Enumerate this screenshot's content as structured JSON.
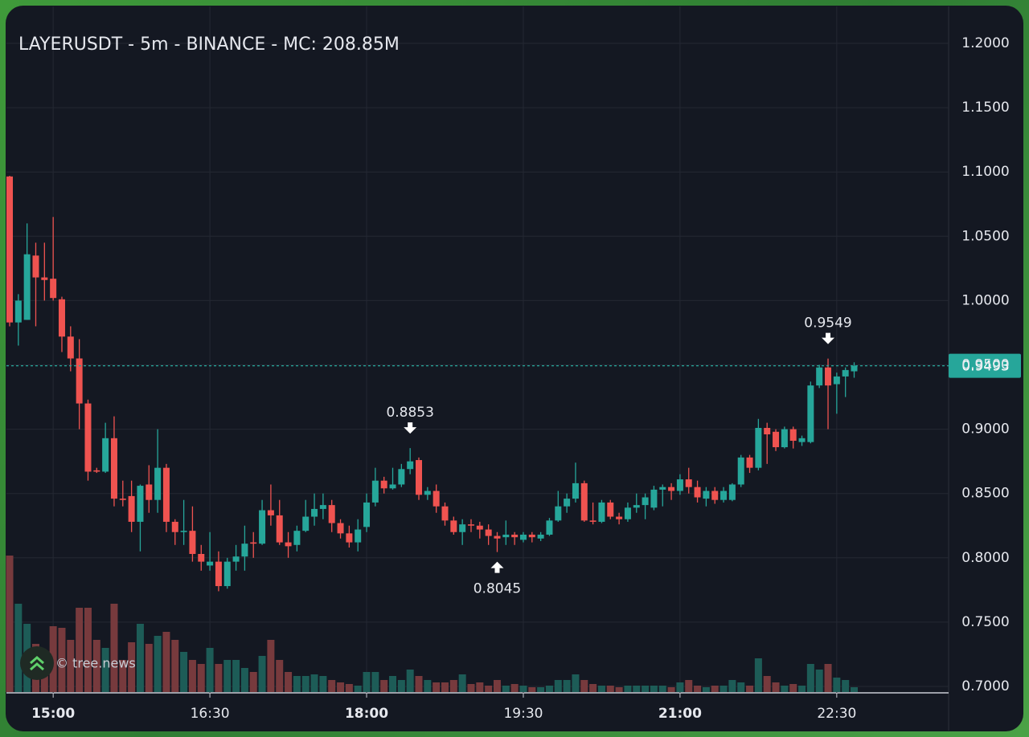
{
  "chart_data": {
    "type": "candlestick",
    "title": "LAYERUSDT - 5m - BINANCE - MC: 208.85M",
    "watermark": "© tree.news",
    "x": [
      "14:35",
      "14:40",
      "14:45",
      "14:50",
      "14:55",
      "15:00",
      "15:05",
      "15:10",
      "15:15",
      "15:20",
      "15:25",
      "15:30",
      "15:35",
      "15:40",
      "15:45",
      "15:50",
      "15:55",
      "16:00",
      "16:05",
      "16:10",
      "16:15",
      "16:20",
      "16:25",
      "16:30",
      "16:35",
      "16:40",
      "16:45",
      "16:50",
      "16:55",
      "17:00",
      "17:05",
      "17:10",
      "17:15",
      "17:20",
      "17:25",
      "17:30",
      "17:35",
      "17:40",
      "17:45",
      "17:50",
      "17:55",
      "18:00",
      "18:05",
      "18:10",
      "18:15",
      "18:20",
      "18:25",
      "18:30",
      "18:35",
      "18:40",
      "18:45",
      "18:50",
      "18:55",
      "19:00",
      "19:05",
      "19:10",
      "19:15",
      "19:20",
      "19:25",
      "19:30",
      "19:35",
      "19:40",
      "19:45",
      "19:50",
      "19:55",
      "20:00",
      "20:05",
      "20:10",
      "20:15",
      "20:20",
      "20:25",
      "20:30",
      "20:35",
      "20:40",
      "20:45",
      "20:50",
      "20:55",
      "21:00",
      "21:05",
      "21:10",
      "21:15",
      "21:20",
      "21:25",
      "21:30",
      "21:35",
      "21:40",
      "21:45",
      "21:50",
      "21:55",
      "22:00",
      "22:05",
      "22:10",
      "22:15",
      "22:20",
      "22:25",
      "22:30",
      "22:35",
      "22:40"
    ],
    "open": [
      1.0965,
      0.983,
      0.985,
      1.035,
      1.018,
      1.017,
      1.001,
      0.972,
      0.955,
      0.92,
      0.868,
      0.867,
      0.893,
      0.846,
      0.848,
      0.828,
      0.857,
      0.845,
      0.87,
      0.828,
      0.82,
      0.821,
      0.803,
      0.794,
      0.797,
      0.778,
      0.797,
      0.801,
      0.812,
      0.811,
      0.837,
      0.833,
      0.812,
      0.81,
      0.821,
      0.832,
      0.838,
      0.841,
      0.827,
      0.819,
      0.812,
      0.824,
      0.843,
      0.86,
      0.854,
      0.857,
      0.869,
      0.876,
      0.849,
      0.852,
      0.84,
      0.829,
      0.82,
      0.826,
      0.825,
      0.822,
      0.817,
      0.816,
      0.818,
      0.814,
      0.818,
      0.815,
      0.818,
      0.829,
      0.84,
      0.846,
      0.858,
      0.829,
      0.828,
      0.843,
      0.832,
      0.83,
      0.839,
      0.841,
      0.839,
      0.853,
      0.855,
      0.852,
      0.861,
      0.855,
      0.846,
      0.852,
      0.845,
      0.845,
      0.857,
      0.878,
      0.87,
      0.901,
      0.898,
      0.886,
      0.9,
      0.89,
      0.89,
      0.934,
      0.948,
      0.935,
      0.941,
      0.945
    ],
    "high": [
      1.097,
      1.005,
      1.06,
      1.045,
      1.045,
      1.065,
      1.003,
      0.98,
      0.97,
      0.923,
      0.87,
      0.905,
      0.91,
      0.86,
      0.86,
      0.857,
      0.872,
      0.9,
      0.873,
      0.83,
      0.845,
      0.84,
      0.81,
      0.82,
      0.805,
      0.8,
      0.81,
      0.825,
      0.82,
      0.845,
      0.857,
      0.845,
      0.82,
      0.825,
      0.845,
      0.85,
      0.85,
      0.845,
      0.83,
      0.825,
      0.83,
      0.85,
      0.87,
      0.863,
      0.87,
      0.873,
      0.8853,
      0.878,
      0.855,
      0.857,
      0.843,
      0.832,
      0.83,
      0.83,
      0.828,
      0.826,
      0.82,
      0.829,
      0.82,
      0.82,
      0.82,
      0.82,
      0.831,
      0.852,
      0.85,
      0.874,
      0.86,
      0.843,
      0.845,
      0.845,
      0.835,
      0.843,
      0.85,
      0.85,
      0.856,
      0.857,
      0.858,
      0.865,
      0.87,
      0.86,
      0.855,
      0.855,
      0.855,
      0.858,
      0.88,
      0.88,
      0.908,
      0.905,
      0.9,
      0.902,
      0.902,
      0.895,
      0.937,
      0.95,
      0.9549,
      0.944,
      0.948,
      0.952
    ],
    "low": [
      0.98,
      0.965,
      0.985,
      0.98,
      1.0,
      1.0,
      0.96,
      0.945,
      0.9,
      0.86,
      0.866,
      0.866,
      0.84,
      0.84,
      0.82,
      0.805,
      0.835,
      0.835,
      0.82,
      0.81,
      0.81,
      0.797,
      0.79,
      0.79,
      0.774,
      0.776,
      0.79,
      0.79,
      0.8,
      0.81,
      0.825,
      0.81,
      0.8,
      0.805,
      0.82,
      0.825,
      0.83,
      0.82,
      0.815,
      0.808,
      0.805,
      0.82,
      0.84,
      0.85,
      0.853,
      0.855,
      0.865,
      0.845,
      0.845,
      0.835,
      0.825,
      0.818,
      0.81,
      0.82,
      0.815,
      0.81,
      0.8045,
      0.81,
      0.81,
      0.812,
      0.812,
      0.813,
      0.817,
      0.828,
      0.835,
      0.843,
      0.828,
      0.826,
      0.827,
      0.83,
      0.826,
      0.828,
      0.835,
      0.83,
      0.837,
      0.84,
      0.845,
      0.849,
      0.85,
      0.843,
      0.84,
      0.842,
      0.843,
      0.844,
      0.855,
      0.866,
      0.868,
      0.873,
      0.883,
      0.885,
      0.885,
      0.887,
      0.889,
      0.932,
      0.9,
      0.912,
      0.925,
      0.94
    ],
    "close": [
      0.983,
      1.0,
      1.036,
      1.018,
      1.016,
      1.002,
      0.972,
      0.955,
      0.92,
      0.867,
      0.867,
      0.893,
      0.846,
      0.845,
      0.828,
      0.856,
      0.845,
      0.87,
      0.828,
      0.82,
      0.821,
      0.803,
      0.797,
      0.797,
      0.778,
      0.797,
      0.801,
      0.811,
      0.811,
      0.837,
      0.833,
      0.812,
      0.809,
      0.821,
      0.832,
      0.838,
      0.841,
      0.827,
      0.819,
      0.812,
      0.822,
      0.843,
      0.86,
      0.854,
      0.857,
      0.869,
      0.875,
      0.849,
      0.852,
      0.84,
      0.829,
      0.82,
      0.826,
      0.825,
      0.822,
      0.817,
      0.815,
      0.818,
      0.816,
      0.818,
      0.816,
      0.818,
      0.829,
      0.84,
      0.846,
      0.858,
      0.829,
      0.828,
      0.843,
      0.832,
      0.83,
      0.839,
      0.841,
      0.847,
      0.853,
      0.855,
      0.852,
      0.861,
      0.855,
      0.847,
      0.852,
      0.845,
      0.852,
      0.857,
      0.878,
      0.87,
      0.901,
      0.896,
      0.886,
      0.9,
      0.891,
      0.893,
      0.934,
      0.948,
      0.934,
      0.941,
      0.946,
      0.9493
    ],
    "volume": [
      170,
      110,
      85,
      60,
      50,
      82,
      80,
      65,
      105,
      105,
      65,
      55,
      110,
      40,
      62,
      85,
      60,
      70,
      75,
      65,
      50,
      40,
      35,
      55,
      35,
      40,
      40,
      30,
      25,
      45,
      65,
      40,
      25,
      20,
      20,
      22,
      20,
      15,
      12,
      10,
      8,
      25,
      25,
      15,
      20,
      15,
      28,
      20,
      15,
      12,
      12,
      15,
      22,
      10,
      12,
      8,
      15,
      8,
      10,
      8,
      6,
      6,
      8,
      15,
      15,
      22,
      15,
      10,
      8,
      8,
      6,
      8,
      8,
      8,
      8,
      8,
      6,
      12,
      15,
      8,
      6,
      8,
      8,
      15,
      12,
      8,
      42,
      20,
      12,
      8,
      10,
      8,
      35,
      28,
      35,
      18,
      15,
      6
    ],
    "up_color": "#26a69a",
    "down_color": "#ef5350",
    "volume_up_color": "#1d5c57",
    "volume_down_color": "#773a3d",
    "ylim": [
      0.7,
      1.2
    ],
    "yticks": [
      {
        "value": 0.7,
        "label": "0.7000"
      },
      {
        "value": 0.75,
        "label": "0.7500"
      },
      {
        "value": 0.8,
        "label": "0.8000"
      },
      {
        "value": 0.85,
        "label": "0.8500"
      },
      {
        "value": 0.9,
        "label": "0.9000"
      },
      {
        "value": 0.95,
        "label": "0.9500"
      },
      {
        "value": 1.0,
        "label": "1.0000"
      },
      {
        "value": 1.05,
        "label": "1.0500"
      },
      {
        "value": 1.1,
        "label": "1.1000"
      },
      {
        "value": 1.15,
        "label": "1.1500"
      },
      {
        "value": 1.2,
        "label": "1.2000"
      }
    ],
    "xticks": [
      "15:00",
      "16:30",
      "18:00",
      "19:30",
      "21:00",
      "22:30"
    ],
    "last_price": 0.9493,
    "annotations": [
      {
        "value": 0.8853,
        "x": "18:25",
        "side": "above"
      },
      {
        "value": 0.8045,
        "x": "19:15",
        "side": "below"
      },
      {
        "value": 0.9549,
        "x": "22:25",
        "side": "above"
      }
    ],
    "grid": true
  }
}
